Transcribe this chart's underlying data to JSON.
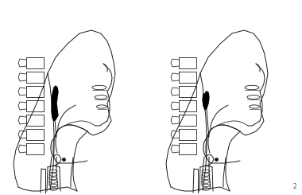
{
  "background_color": "#ffffff",
  "line_color": "#1a1a1a",
  "fill_black": "#000000",
  "fig_width": 3.8,
  "fig_height": 2.45,
  "dpi": 100,
  "page_number": "2",
  "lw": 0.7
}
